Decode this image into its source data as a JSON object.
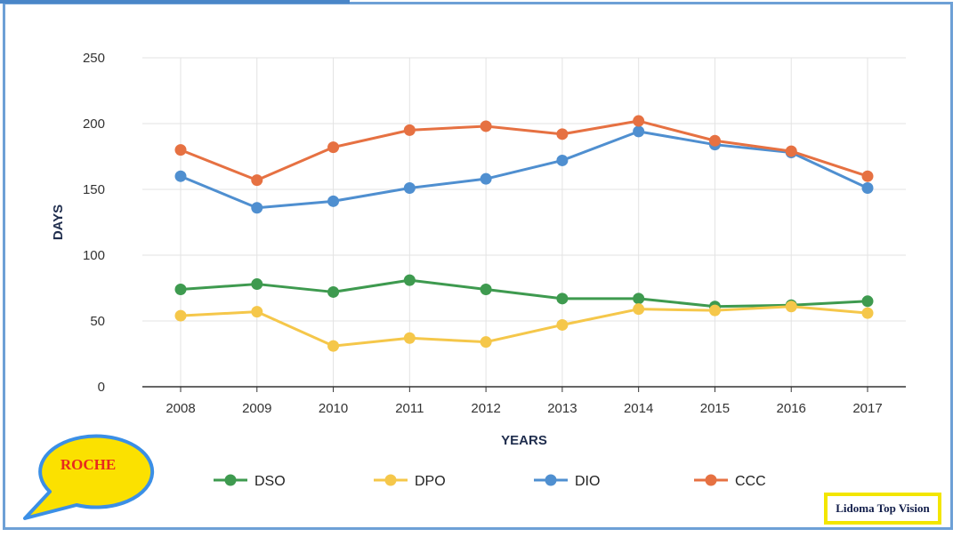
{
  "chart_data": {
    "type": "line",
    "title": "",
    "xlabel": "YEARS",
    "ylabel": "DAYS",
    "x": [
      "2008",
      "2009",
      "2010",
      "2011",
      "2012",
      "2013",
      "2014",
      "2015",
      "2016",
      "2017"
    ],
    "ylim": [
      0,
      250
    ],
    "yticks": [
      0,
      50,
      100,
      150,
      200,
      250
    ],
    "grid": true,
    "legend_position": "bottom",
    "series": [
      {
        "name": "DSO",
        "color": "#3e9a4f",
        "values": [
          74,
          78,
          72,
          81,
          74,
          67,
          67,
          61,
          62,
          65
        ]
      },
      {
        "name": "DPO",
        "color": "#f5c74a",
        "values": [
          54,
          57,
          31,
          37,
          34,
          47,
          59,
          58,
          61,
          56
        ]
      },
      {
        "name": "DIO",
        "color": "#4f8fd0",
        "values": [
          160,
          136,
          141,
          151,
          158,
          172,
          194,
          184,
          178,
          151
        ]
      },
      {
        "name": "CCC",
        "color": "#e67142",
        "values": [
          180,
          157,
          182,
          195,
          198,
          192,
          202,
          187,
          179,
          160
        ]
      }
    ]
  },
  "badge": {
    "label": "ROCHE",
    "fill": "#fbe100",
    "outline": "#3b8fe6"
  },
  "brand": {
    "label": "Lidoma Top Vision",
    "border": "#f3e600"
  }
}
